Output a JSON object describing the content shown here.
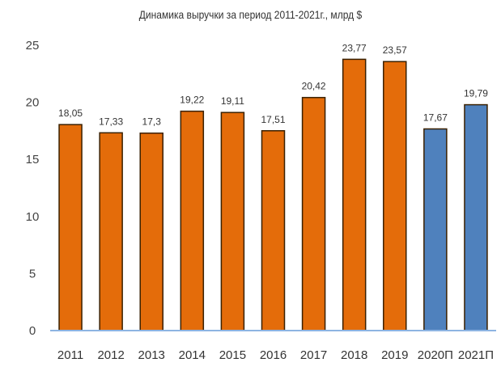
{
  "chart_data": {
    "type": "bar",
    "title": "Динамика выручки за период 2011-2021г.,  млрд $",
    "xlabel": "",
    "ylabel": "",
    "categories": [
      "2011",
      "2012",
      "2013",
      "2014",
      "2015",
      "2016",
      "2017",
      "2018",
      "2019",
      "2020П",
      "2021П"
    ],
    "values": [
      18.05,
      17.33,
      17.3,
      19.22,
      19.11,
      17.51,
      20.42,
      23.77,
      23.57,
      17.67,
      19.79
    ],
    "data_labels": [
      "18,05",
      "17,33",
      "17,3",
      "19,22",
      "19,11",
      "17,51",
      "20,42",
      "23,77",
      "23,57",
      "17,67",
      "19,79"
    ],
    "ylim": [
      0,
      25
    ],
    "yticks": [
      0,
      5,
      10,
      15,
      20,
      25
    ],
    "grid": false,
    "colors": {
      "actual": "#E46C0A",
      "forecast": "#4F81BD",
      "bar_outline": "#3A2000",
      "baseline": "#8DB4E2"
    },
    "forecast_categories": [
      "2020П",
      "2021П"
    ]
  }
}
